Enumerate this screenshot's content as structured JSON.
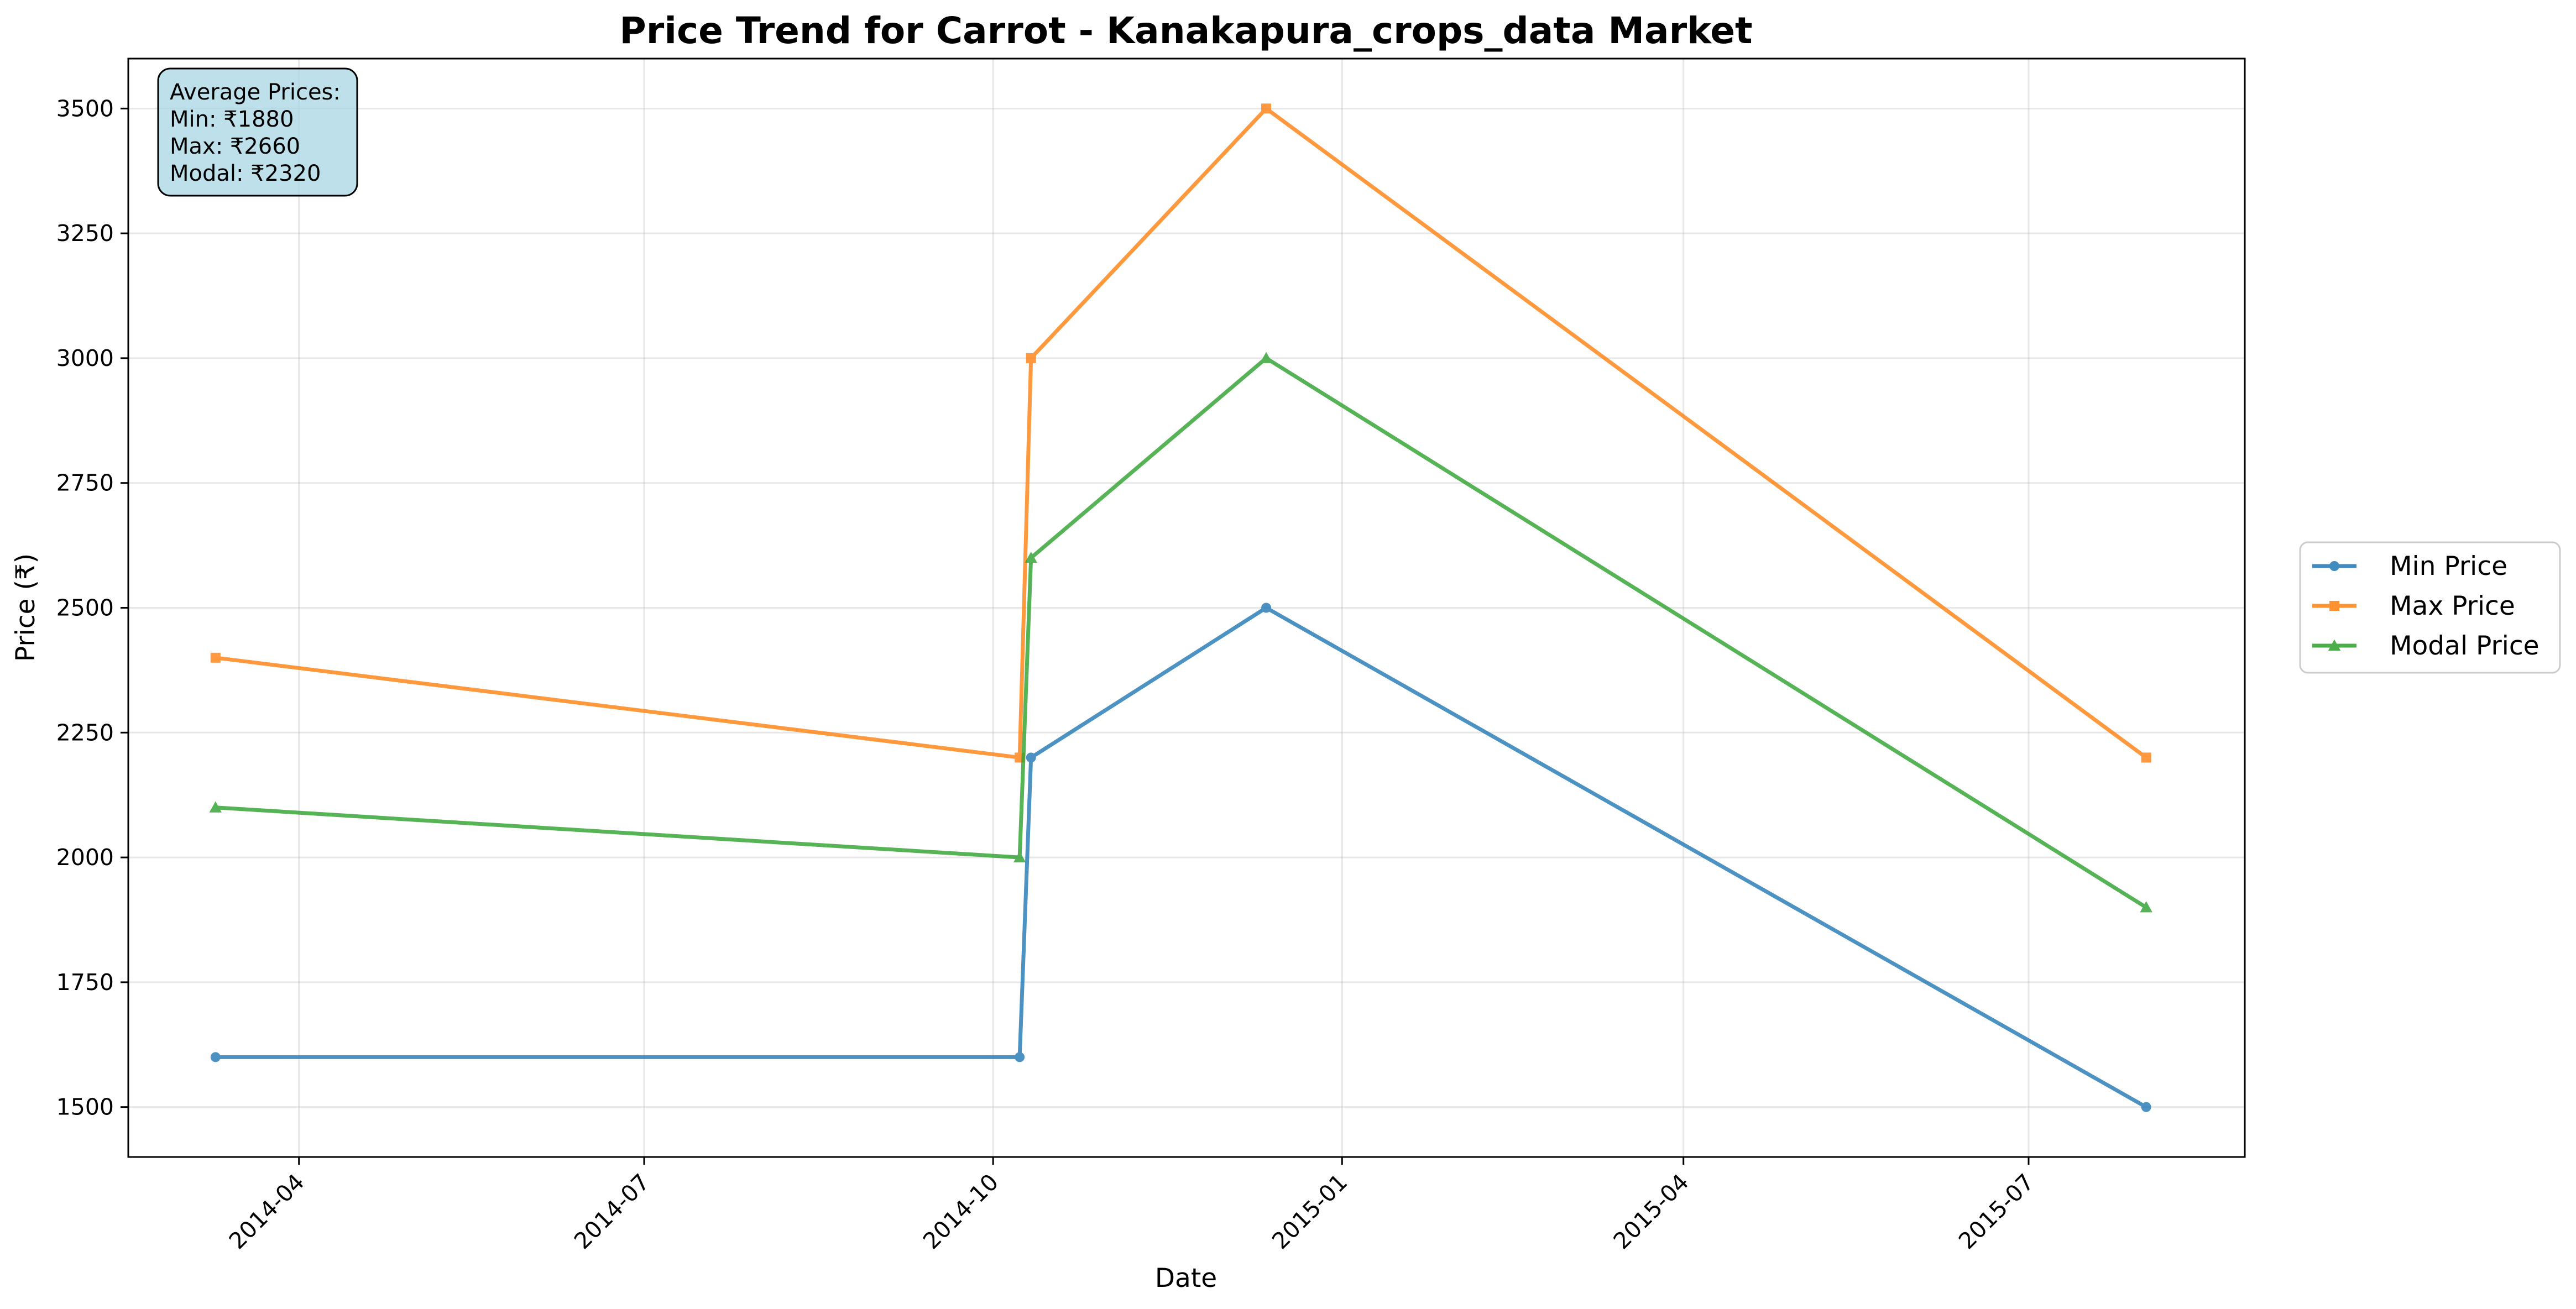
{
  "chart_data": {
    "type": "line",
    "title": "Price Trend for Carrot - Kanakapura_crops_data Market",
    "xlabel": "Date",
    "ylabel": "Price (₹)",
    "x": [
      "2014-03-10",
      "2014-10-08",
      "2014-10-11",
      "2014-12-12",
      "2015-08-01"
    ],
    "xlim": [
      "2014-02-15",
      "2015-08-27"
    ],
    "ylim": [
      1400,
      3600
    ],
    "x_ticks": [
      "2014-04",
      "2014-07",
      "2014-10",
      "2015-01",
      "2015-04",
      "2015-07"
    ],
    "x_tick_dates": [
      "2014-04-01",
      "2014-07-01",
      "2014-10-01",
      "2015-01-01",
      "2015-04-01",
      "2015-07-01"
    ],
    "y_ticks": [
      1500,
      1750,
      2000,
      2250,
      2500,
      2750,
      3000,
      3250,
      3500
    ],
    "grid": true,
    "legend_position": "right",
    "series": [
      {
        "name": "Min Price",
        "color": "#1f77b4",
        "marker": "circle",
        "values": [
          1600,
          1600,
          2200,
          2500,
          1500
        ]
      },
      {
        "name": "Max Price",
        "color": "#ff7f0e",
        "marker": "square",
        "values": [
          2400,
          2200,
          3000,
          3500,
          2200
        ]
      },
      {
        "name": "Modal Price",
        "color": "#2ca02c",
        "marker": "triangle",
        "values": [
          2100,
          2000,
          2600,
          3000,
          1900
        ]
      }
    ],
    "annotation": {
      "heading": "Average Prices:",
      "lines": [
        "Min: ₹1880",
        "Max: ₹2660",
        "Modal: ₹2320"
      ],
      "box_color": "#add8e6"
    }
  }
}
